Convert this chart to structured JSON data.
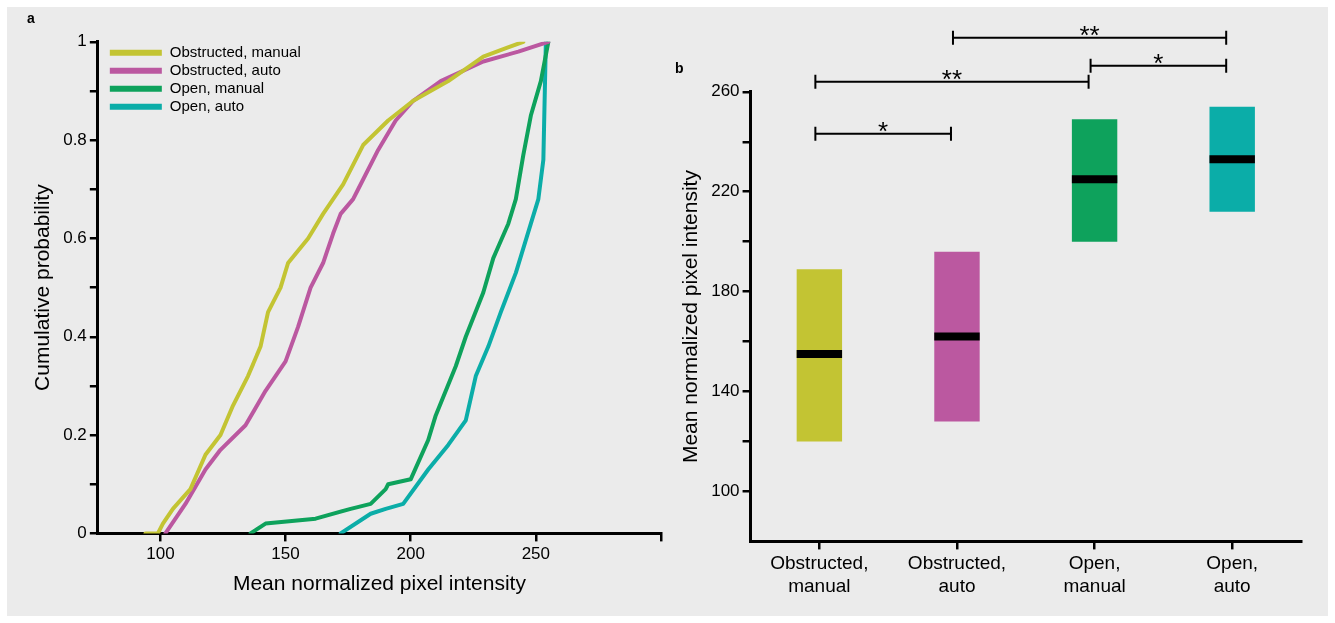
{
  "chart_data": [
    {
      "type": "line",
      "title": "a",
      "xlabel": "Mean normalized pixel intensity",
      "ylabel": "Cumulative probability",
      "xlim": [
        75,
        300
      ],
      "xticks": [
        100,
        150,
        200,
        250,
        {
          "value": 300,
          "label": null
        }
      ],
      "ylim": [
        0,
        1
      ],
      "yticks": [
        0,
        {
          "value": 0.1,
          "label": null
        },
        0.2,
        {
          "value": 0.3,
          "label": null
        },
        0.4,
        {
          "value": 0.5,
          "label": null
        },
        0.6,
        {
          "value": 0.7,
          "label": null
        },
        0.8,
        {
          "value": 0.9,
          "label": null
        },
        1
      ],
      "legend": "top left",
      "marker": "none",
      "line_style": "solid",
      "series": [
        {
          "name": "Obstructed, manual",
          "color": "#c3c433",
          "x": [
            94,
            99,
            101,
            105,
            112,
            118,
            124,
            129,
            135,
            140,
            143,
            148,
            151,
            159,
            165,
            173,
            181,
            191,
            201,
            215,
            229,
            245
          ],
          "values": [
            0,
            0,
            0.02,
            0.05,
            0.09,
            0.16,
            0.2,
            0.26,
            0.32,
            0.38,
            0.45,
            0.5,
            0.55,
            0.6,
            0.65,
            0.71,
            0.79,
            0.84,
            0.88,
            0.92,
            0.97,
            1
          ]
        },
        {
          "name": "Obstructed, auto",
          "color": "#bb58a0",
          "x": [
            102,
            110,
            118,
            124,
            134,
            142,
            146,
            150,
            155,
            160,
            165,
            169,
            172,
            177,
            179,
            187,
            194,
            201,
            212,
            229,
            243,
            255
          ],
          "values": [
            0,
            0.06,
            0.13,
            0.17,
            0.22,
            0.29,
            0.32,
            0.35,
            0.42,
            0.5,
            0.55,
            0.61,
            0.65,
            0.68,
            0.7,
            0.78,
            0.84,
            0.88,
            0.92,
            0.96,
            0.98,
            1
          ]
        },
        {
          "name": "Open, manual",
          "color": "#0ea25c",
          "x": [
            136,
            142,
            162,
            176,
            184,
            190,
            191,
            200,
            207,
            210,
            218,
            222,
            229,
            233,
            239,
            242,
            245,
            248,
            252,
            255
          ],
          "values": [
            0,
            0.02,
            0.03,
            0.05,
            0.06,
            0.09,
            0.1,
            0.11,
            0.19,
            0.24,
            0.34,
            0.4,
            0.49,
            0.56,
            0.63,
            0.68,
            0.77,
            0.85,
            0.92,
            1
          ]
        },
        {
          "name": "Open, auto",
          "color": "#0bada8",
          "x": [
            172,
            184,
            190,
            197,
            207,
            215,
            222,
            226,
            231,
            236,
            242,
            248,
            251,
            253,
            254
          ],
          "values": [
            0,
            0.04,
            0.05,
            0.06,
            0.13,
            0.18,
            0.23,
            0.32,
            0.38,
            0.45,
            0.53,
            0.63,
            0.68,
            0.76,
            1
          ]
        }
      ]
    },
    {
      "type": "box",
      "title": "b",
      "ylabel": "Mean normalized pixel intensity",
      "categories": [
        "Obstructed, manual",
        "Obstructed, auto",
        "Open, manual",
        "Open, auto"
      ],
      "colors": [
        "#c3c433",
        "#bb58a0",
        "#0ea25c",
        "#0bada8"
      ],
      "ylim": [
        80,
        260
      ],
      "yticks": [
        100,
        {
          "value": 120,
          "label": null
        },
        140,
        {
          "value": 160,
          "label": null
        },
        180,
        {
          "value": 200,
          "label": null
        },
        220,
        {
          "value": 240,
          "label": null
        },
        260
      ],
      "boxes": [
        {
          "low": 120,
          "q1": 120,
          "median": 155,
          "q3": 189,
          "high": 189
        },
        {
          "low": 128,
          "q1": 128,
          "median": 162,
          "q3": 196,
          "high": 196
        },
        {
          "low": 200,
          "q1": 200,
          "median": 225,
          "q3": 249,
          "high": 249
        },
        {
          "low": 212,
          "q1": 212,
          "median": 233,
          "q3": 254,
          "high": 254
        }
      ],
      "annotations": [
        "*",
        "**",
        "*",
        "**"
      ]
    }
  ]
}
